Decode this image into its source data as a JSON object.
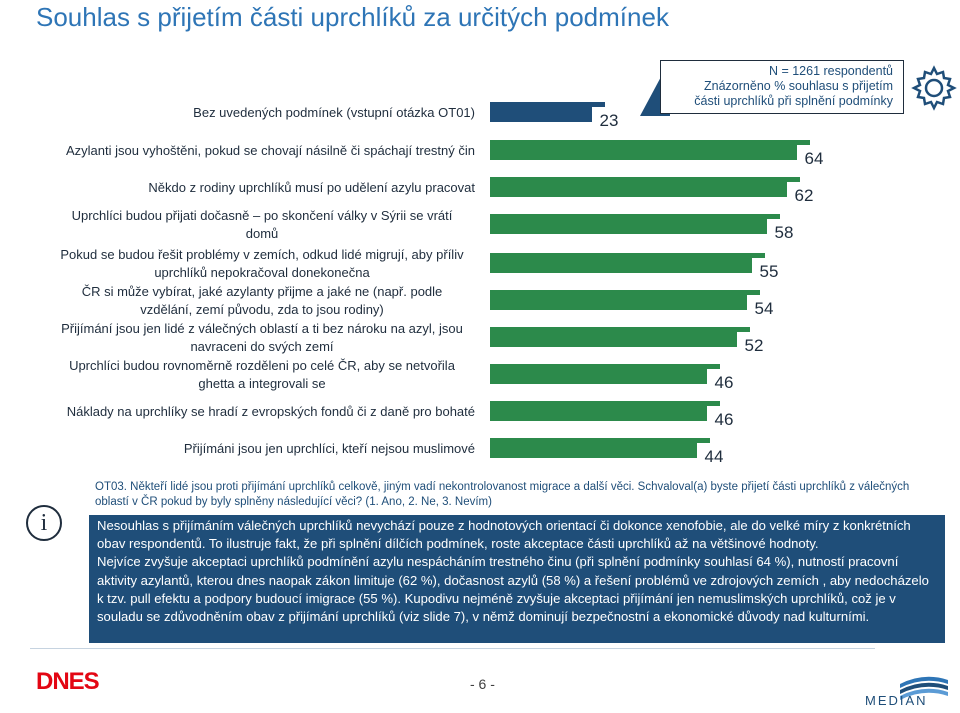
{
  "page": {
    "title": "Souhlas s přijetím části uprchlíků za určitých podmínek",
    "page_number": "- 6 -"
  },
  "info_box": {
    "line1": "N = 1261 respondentů",
    "line2": "Znázorněno % souhlasu s přijetím",
    "line3": "části uprchlíků při splnění podmínky"
  },
  "chart_data": {
    "type": "bar",
    "orientation": "horizontal",
    "bar_color": "#2c8a4b",
    "label_box_color": "#ffffff",
    "xlim": [
      0,
      100
    ],
    "categories": [
      "Bez uvedených podmínek (vstupní otázka OT01)",
      "Azylanti jsou vyhoštěni, pokud se chovají násilně či spáchají trestný čin",
      "Někdo z rodiny uprchlíků musí po udělení azylu pracovat",
      "Uprchlíci budou přijati dočasně – po skončení války v Sýrii se vrátí domů",
      "Pokud se budou řešit problémy v zemích, odkud lidé migrují, aby příliv uprchlíků nepokračoval donekonečna",
      "ČR si může vybírat, jaké azylanty přijme a jaké ne (např. podle vzdělání, zemí původu, zda to jsou rodiny)",
      "Přijímání jsou jen lidé z válečných oblastí a ti bez nároku na azyl, jsou navraceni do svých zemí",
      "Uprchlíci budou rovnoměrně rozděleni po celé ČR, aby se netvořila ghetta a integrovali se",
      "Náklady na uprchlíky se hradí z evropských fondů či z daně pro bohaté",
      "Přijímáni jsou jen uprchlíci, kteří nejsou muslimové"
    ],
    "label_lines": [
      [
        "Bez uvedených podmínek (vstupní otázka OT01)"
      ],
      [
        "Azylanti jsou vyhoštěni, pokud se chovají násilně či spáchají trestný čin"
      ],
      [
        "Někdo z rodiny uprchlíků musí po udělení azylu pracovat"
      ],
      [
        "Uprchlíci budou přijati dočasně – po skončení války v Sýrii se vrátí",
        "domů"
      ],
      [
        "Pokud se budou řešit problémy v zemích, odkud lidé migrují, aby příliv",
        "uprchlíků nepokračoval donekonečna"
      ],
      [
        "ČR si může vybírat, jaké azylanty přijme a jaké ne (např. podle",
        "vzdělání, zemí původu, zda to jsou rodiny)"
      ],
      [
        "Přijímání jsou jen lidé z válečných oblastí a ti bez nároku na azyl, jsou",
        "navraceni do svých zemí"
      ],
      [
        "Uprchlíci budou rovnoměrně rozděleni po celé ČR, aby se netvořila",
        "ghetta a integrovali se"
      ],
      [
        "Náklady na uprchlíky se hradí z evropských fondů či z daně pro bohaté"
      ],
      [
        "Přijímáni jsou jen uprchlíci, kteří nejsou muslimové"
      ]
    ],
    "values": [
      23,
      64,
      62,
      58,
      55,
      54,
      52,
      46,
      46,
      44
    ],
    "highlight_first_color": "#1f4e79"
  },
  "note": {
    "text": "OT03. Někteří lidé jsou proti přijímání uprchlíků celkově, jiným vadí nekontrolovanost migrace a další věci. Schvaloval(a) byste přijetí části uprchlíků z válečných oblastí v ČR pokud by byly splněny následující věci? (1. Ano, 2. Ne, 3. Nevím)"
  },
  "summary": {
    "p1": "Nesouhlas s přijímáním válečných uprchlíků nevychází pouze z hodnotových orientací či dokonce xenofobie, ale do velké míry z konkrétních obav respondentů. To ilustruje fakt, že při splnění dílčích podmínek, roste akceptace části uprchlíků až na většinové hodnoty.",
    "p2": "Nejvíce zvyšuje akceptaci uprchlíků podmínění azylu nespácháním trestného činu (při splnění podmínky souhlasí 64 %), nutností pracovní aktivity azylantů, kterou dnes naopak zákon limituje (62 %), dočasnost azylů (58 %) a řešení problémů ve zdrojových zemích , aby nedocházelo k tzv. pull efektu a podpory budoucí imigrace (55 %). Kupodivu nejméně zvyšuje akceptaci přijímání jen nemuslimských uprchlíků, což je v souladu se zdůvodněním obav z přijímání uprchlíků (viz slide 7), v němž dominují bezpečnostní a ekonomické důvody nad kulturními."
  },
  "logos": {
    "left": "DNES",
    "right": "MEDIAN"
  }
}
